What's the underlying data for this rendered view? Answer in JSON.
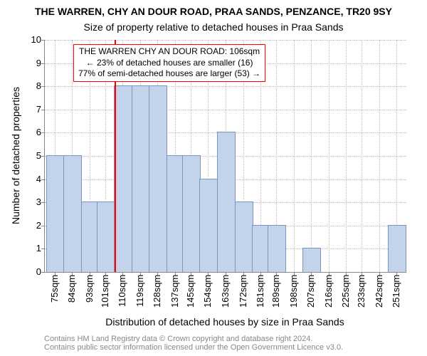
{
  "title_main": "THE WARREN, CHY AN DOUR ROAD, PRAA SANDS, PENZANCE, TR20 9SY",
  "title_sub": "Size of property relative to detached houses in Praa Sands",
  "y_axis_label": "Number of detached properties",
  "x_axis_label": "Distribution of detached houses by size in Praa Sands",
  "footer_line1": "Contains HM Land Registry data © Crown copyright and database right 2024.",
  "footer_line2": "Contains public sector information licensed under the Open Government Licence v3.0.",
  "annotation": {
    "line1": "THE WARREN CHY AN DOUR ROAD: 106sqm",
    "line2": "← 23% of detached houses are smaller (16)",
    "line3": "77% of semi-detached houses are larger (53) →"
  },
  "chart": {
    "type": "histogram",
    "ylim": [
      0,
      10
    ],
    "ytick_step": 1,
    "x_tick_labels": [
      "75sqm",
      "84sqm",
      "93sqm",
      "101sqm",
      "110sqm",
      "119sqm",
      "128sqm",
      "137sqm",
      "145sqm",
      "154sqm",
      "163sqm",
      "172sqm",
      "181sqm",
      "189sqm",
      "198sqm",
      "207sqm",
      "216sqm",
      "225sqm",
      "233sqm",
      "242sqm",
      "251sqm"
    ],
    "x_tick_positions": [
      75,
      84,
      93,
      101,
      110,
      119,
      128,
      137,
      145,
      154,
      163,
      172,
      181,
      189,
      198,
      207,
      216,
      225,
      233,
      242,
      251
    ],
    "x_min": 70,
    "x_max": 256,
    "bars": [
      {
        "x": 75,
        "h": 5
      },
      {
        "x": 84,
        "h": 5
      },
      {
        "x": 93,
        "h": 3
      },
      {
        "x": 101,
        "h": 3
      },
      {
        "x": 110,
        "h": 8
      },
      {
        "x": 119,
        "h": 8
      },
      {
        "x": 128,
        "h": 8
      },
      {
        "x": 137,
        "h": 5
      },
      {
        "x": 145,
        "h": 5
      },
      {
        "x": 154,
        "h": 4
      },
      {
        "x": 163,
        "h": 6
      },
      {
        "x": 172,
        "h": 3
      },
      {
        "x": 181,
        "h": 2
      },
      {
        "x": 189,
        "h": 2
      },
      {
        "x": 198,
        "h": 0
      },
      {
        "x": 207,
        "h": 1
      },
      {
        "x": 216,
        "h": 0
      },
      {
        "x": 225,
        "h": 0
      },
      {
        "x": 233,
        "h": 0
      },
      {
        "x": 242,
        "h": 0
      },
      {
        "x": 251,
        "h": 2
      }
    ],
    "bar_width_sqm": 8.8,
    "bar_color": "#c3d3e9",
    "bar_border": "#7a95c1",
    "grid_color": "#bbbbbb",
    "marker_x": 106,
    "marker_color": "#ff0000",
    "background": "#ffffff",
    "title_fontsize": 14,
    "subtitle_fontsize": 14,
    "axis_label_fontsize": 14,
    "tick_fontsize": 13,
    "annotation_fontsize": 12,
    "footer_fontsize": 11,
    "footer_color": "#888888"
  }
}
